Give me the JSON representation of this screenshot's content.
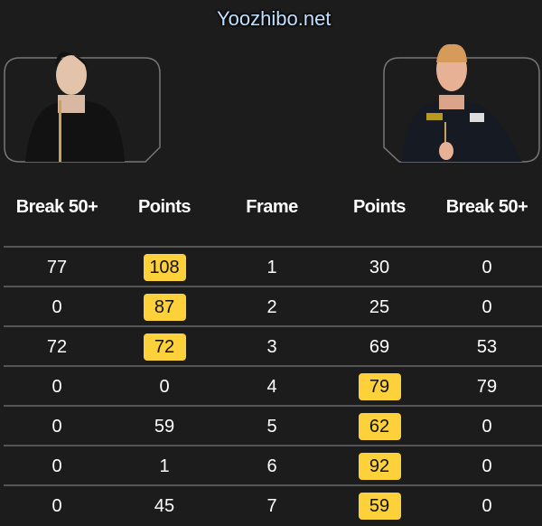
{
  "players": {
    "left": {
      "photo_icon": "player-photo"
    },
    "right": {
      "photo_icon": "player-photo"
    }
  },
  "table": {
    "headers": [
      "Break 50+",
      "Points",
      "Frame",
      "Points",
      "Break 50+"
    ],
    "rows": [
      {
        "cells": [
          "77",
          "108",
          "1",
          "30",
          "0"
        ],
        "winner": "left"
      },
      {
        "cells": [
          "0",
          "87",
          "2",
          "25",
          "0"
        ],
        "winner": "left"
      },
      {
        "cells": [
          "72",
          "72",
          "3",
          "69",
          "53"
        ],
        "winner": "left"
      },
      {
        "cells": [
          "0",
          "0",
          "4",
          "79",
          "79"
        ],
        "winner": "right"
      },
      {
        "cells": [
          "0",
          "59",
          "5",
          "62",
          "0"
        ],
        "winner": "right"
      },
      {
        "cells": [
          "0",
          "1",
          "6",
          "92",
          "0"
        ],
        "winner": "right"
      },
      {
        "cells": [
          "0",
          "45",
          "7",
          "59",
          "0"
        ],
        "winner": "right"
      }
    ]
  },
  "colors": {
    "background": "#1c1c1c",
    "highlight": "#fdd13a",
    "divider": "#555555"
  },
  "watermark": "Yoozhibo.net"
}
